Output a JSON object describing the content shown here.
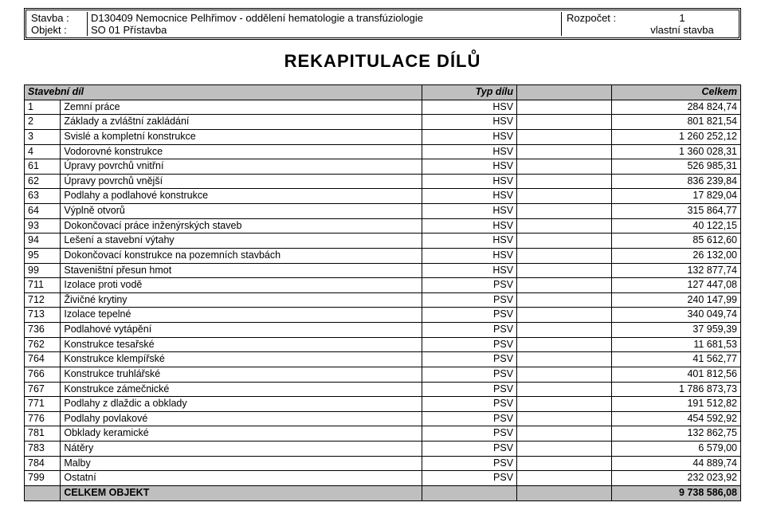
{
  "header": {
    "stavba_label": "Stavba :",
    "stavba_value": "D130409 Nemocnice Pelhřimov - oddělení hematologie a transfúziologie",
    "objekt_label": "Objekt :",
    "objekt_value": "SO 01 Přístavba",
    "rozpocet_label": "Rozpočet :",
    "rozpocet_value": "1",
    "vlastni": "vlastní stavba"
  },
  "title": "REKAPITULACE DÍLŮ",
  "columns": {
    "col1": "Stavební díl",
    "col2": "Typ dílu",
    "col3": "Celkem"
  },
  "rows": [
    {
      "code": "1",
      "desc": "Zemní práce",
      "type": "HSV",
      "total": "284 824,74"
    },
    {
      "code": "2",
      "desc": "Základy a zvláštní zakládání",
      "type": "HSV",
      "total": "801 821,54"
    },
    {
      "code": "3",
      "desc": "Svislé a kompletní konstrukce",
      "type": "HSV",
      "total": "1 260 252,12"
    },
    {
      "code": "4",
      "desc": "Vodorovné konstrukce",
      "type": "HSV",
      "total": "1 360 028,31"
    },
    {
      "code": "61",
      "desc": "Úpravy povrchů vnitřní",
      "type": "HSV",
      "total": "526 985,31"
    },
    {
      "code": "62",
      "desc": "Úpravy povrchů vnější",
      "type": "HSV",
      "total": "836 239,84"
    },
    {
      "code": "63",
      "desc": "Podlahy a podlahové konstrukce",
      "type": "HSV",
      "total": "17 829,04"
    },
    {
      "code": "64",
      "desc": "Výplně otvorů",
      "type": "HSV",
      "total": "315 864,77"
    },
    {
      "code": "93",
      "desc": "Dokončovací práce inženýrských staveb",
      "type": "HSV",
      "total": "40 122,15"
    },
    {
      "code": "94",
      "desc": "Lešení a stavební výtahy",
      "type": "HSV",
      "total": "85 612,60"
    },
    {
      "code": "95",
      "desc": "Dokončovací konstrukce na pozemních stavbách",
      "type": "HSV",
      "total": "26 132,00"
    },
    {
      "code": "99",
      "desc": "Staveništní přesun hmot",
      "type": "HSV",
      "total": "132 877,74"
    },
    {
      "code": "711",
      "desc": "Izolace proti vodě",
      "type": "PSV",
      "total": "127 447,08"
    },
    {
      "code": "712",
      "desc": "Živičné krytiny",
      "type": "PSV",
      "total": "240 147,99"
    },
    {
      "code": "713",
      "desc": "Izolace tepelné",
      "type": "PSV",
      "total": "340 049,74"
    },
    {
      "code": "736",
      "desc": "Podlahové vytápění",
      "type": "PSV",
      "total": "37 959,39"
    },
    {
      "code": "762",
      "desc": "Konstrukce tesařské",
      "type": "PSV",
      "total": "11 681,53"
    },
    {
      "code": "764",
      "desc": "Konstrukce klempířské",
      "type": "PSV",
      "total": "41 562,77"
    },
    {
      "code": "766",
      "desc": "Konstrukce truhlářské",
      "type": "PSV",
      "total": "401 812,56"
    },
    {
      "code": "767",
      "desc": "Konstrukce zámečnické",
      "type": "PSV",
      "total": "1 786 873,73"
    },
    {
      "code": "771",
      "desc": "Podlahy z dlaždic a obklady",
      "type": "PSV",
      "total": "191 512,82"
    },
    {
      "code": "776",
      "desc": "Podlahy povlakové",
      "type": "PSV",
      "total": "454 592,92"
    },
    {
      "code": "781",
      "desc": "Obklady keramické",
      "type": "PSV",
      "total": "132 862,75"
    },
    {
      "code": "783",
      "desc": "Nátěry",
      "type": "PSV",
      "total": "6 579,00"
    },
    {
      "code": "784",
      "desc": "Malby",
      "type": "PSV",
      "total": "44 889,74"
    },
    {
      "code": "799",
      "desc": "Ostatní",
      "type": "PSV",
      "total": "232 023,92"
    }
  ],
  "total_row": {
    "label": "CELKEM OBJEKT",
    "value": "9 738 586,08"
  }
}
